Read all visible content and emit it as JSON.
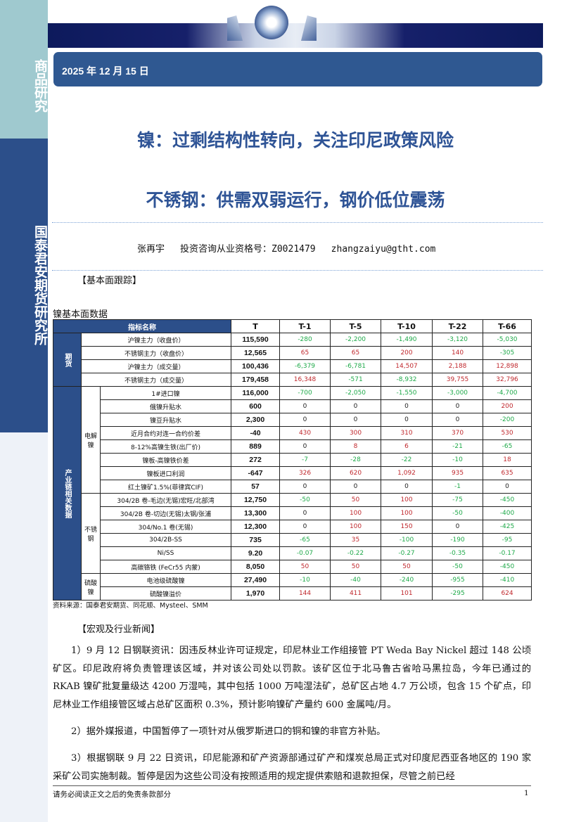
{
  "sidebar": {
    "top_label": "商品研究",
    "mid_label": "国泰君安期货研究所"
  },
  "header": {
    "date": "2025 年 12 月 15 日"
  },
  "titles": [
    "镍：过剩结构性转向，关注印尼政策风险",
    "不锈钢：供需双弱运行，钢价低位震荡"
  ],
  "author": {
    "name": "张再宇",
    "license": "投资咨询从业资格号：Z0021479",
    "email": "zhangzaiyu@gtht.com"
  },
  "section1": "【基本面跟踪】",
  "table_title": "镍基本面数据",
  "table": {
    "headers": [
      "指标名称",
      "T",
      "T-1",
      "T-5",
      "T-10",
      "T-22",
      "T-66"
    ],
    "groups": [
      {
        "label": "期货",
        "rows": [
          {
            "name": "沪镍主力（收盘价）",
            "values": [
              "115,590",
              "-280",
              "-2,200",
              "-1,490",
              "-3,120",
              "-5,030"
            ]
          },
          {
            "name": "不锈钢主力（收盘价）",
            "values": [
              "12,565",
              "65",
              "65",
              "200",
              "140",
              "-305"
            ]
          },
          {
            "name": "沪镍主力（成交量）",
            "values": [
              "100,436",
              "-6,379",
              "-6,781",
              "14,507",
              "2,188",
              "12,898"
            ]
          },
          {
            "name": "不锈钢主力（成交量）",
            "values": [
              "179,458",
              "16,348",
              "-571",
              "-8,932",
              "39,755",
              "32,796"
            ]
          }
        ]
      },
      {
        "label": "产业链相关数据",
        "subgroups": [
          {
            "label": "电解镍",
            "rows": [
              {
                "name": "1#进口镍",
                "values": [
                  "116,000",
                  "-700",
                  "-2,050",
                  "-1,550",
                  "-3,000",
                  "-4,700"
                ]
              },
              {
                "name": "俄镍升贴水",
                "values": [
                  "600",
                  "0",
                  "0",
                  "0",
                  "0",
                  "200"
                ]
              },
              {
                "name": "镍豆升贴水",
                "values": [
                  "2,300",
                  "0",
                  "0",
                  "0",
                  "0",
                  "-200"
                ]
              },
              {
                "name": "近月合约对连一合约价差",
                "values": [
                  "-40",
                  "430",
                  "300",
                  "310",
                  "370",
                  "530"
                ]
              },
              {
                "name": "8-12%高镍生铁(出厂价)",
                "values": [
                  "889",
                  "0",
                  "8",
                  "6",
                  "-21",
                  "-65"
                ]
              },
              {
                "name": "镍板-高镍铁价差",
                "values": [
                  "272",
                  "-7",
                  "-28",
                  "-22",
                  "-10",
                  "18"
                ]
              },
              {
                "name": "镍板进口利润",
                "values": [
                  "-647",
                  "326",
                  "620",
                  "1,092",
                  "935",
                  "635"
                ]
              },
              {
                "name": "红土镍矿1.5%(菲律宾CIF)",
                "values": [
                  "57",
                  "0",
                  "0",
                  "0",
                  "-1",
                  "0"
                ]
              }
            ]
          },
          {
            "label": "不锈钢",
            "rows": [
              {
                "name": "304/2B 卷-毛边(无锡)宏旺/北部湾",
                "values": [
                  "12,750",
                  "-50",
                  "50",
                  "100",
                  "-75",
                  "-450"
                ]
              },
              {
                "name": "304/2B 卷-切边(无锡)太钢/张浦",
                "values": [
                  "13,300",
                  "0",
                  "100",
                  "100",
                  "-50",
                  "-400"
                ]
              },
              {
                "name": "304/No.1 卷(无锡)",
                "values": [
                  "12,300",
                  "0",
                  "100",
                  "150",
                  "0",
                  "-425"
                ]
              },
              {
                "name": "304/2B-SS",
                "values": [
                  "735",
                  "-65",
                  "35",
                  "-100",
                  "-190",
                  "-95"
                ]
              },
              {
                "name": "Ni/SS",
                "values": [
                  "9.20",
                  "-0.07",
                  "-0.22",
                  "-0.27",
                  "-0.35",
                  "-0.17"
                ]
              },
              {
                "name": "高碳铬铁 (FeCr55 内蒙)",
                "values": [
                  "8,050",
                  "50",
                  "50",
                  "50",
                  "-50",
                  "-450"
                ]
              }
            ]
          },
          {
            "label": "硫酸镍",
            "rows": [
              {
                "name": "电池级硫酸镍",
                "values": [
                  "27,490",
                  "-10",
                  "-40",
                  "-240",
                  "-955",
                  "-410"
                ]
              },
              {
                "name": "硫酸镍溢价",
                "values": [
                  "1,970",
                  "144",
                  "411",
                  "101",
                  "-295",
                  "624"
                ]
              }
            ]
          }
        ]
      }
    ]
  },
  "source": "资料来源：国泰君安期货、同花顺、Mysteel、SMM",
  "section2": "【宏观及行业新闻】",
  "paragraphs": [
    "1）9 月 12 日钢联资讯：因违反林业许可证规定，印尼林业工作组接管 PT  Weda  Bay  Nickel 超过 148 公顷矿区。印尼政府将负责管理该区域，并对该公司处以罚款。该矿区位于北马鲁古省哈马黑拉岛，今年已通过的 RKAB 镍矿批复量级达 4200 万湿吨，其中包括 1000 万吨湿法矿，总矿区占地 4.7 万公顷，包含 15 个矿点，印尼林业工作组接管区域占总矿区面积 0.3%，预计影响镍矿产量约 600 金属吨/月。",
    "2）据外媒报道，中国暂停了一项针对从俄罗斯进口的铜和镍的非官方补贴。",
    "3）根据钢联 9 月 22 日资讯，印尼能源和矿产资源部通过矿产和煤炭总局正式对印度尼西亚各地区的 190 家采矿公司实施制裁。暂停是因为这些公司没有按照适用的规定提供索赔和退款担保，尽管之前已经"
  ],
  "footer": {
    "disclaimer": "请务必阅读正文之后的免责条款部分",
    "page": "1"
  },
  "colors": {
    "positive": "#c0282d",
    "negative": "#1faa4a",
    "brand": "#2c4f8a"
  }
}
